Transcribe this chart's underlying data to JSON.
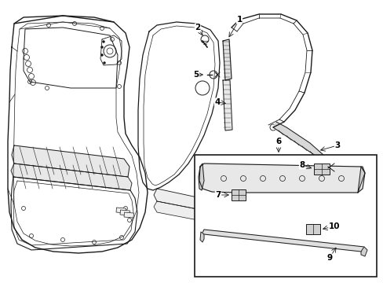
{
  "background_color": "#ffffff",
  "line_color": "#1a1a1a",
  "fig_width": 4.89,
  "fig_height": 3.6,
  "dpi": 100,
  "label_fontsize": 7.5
}
